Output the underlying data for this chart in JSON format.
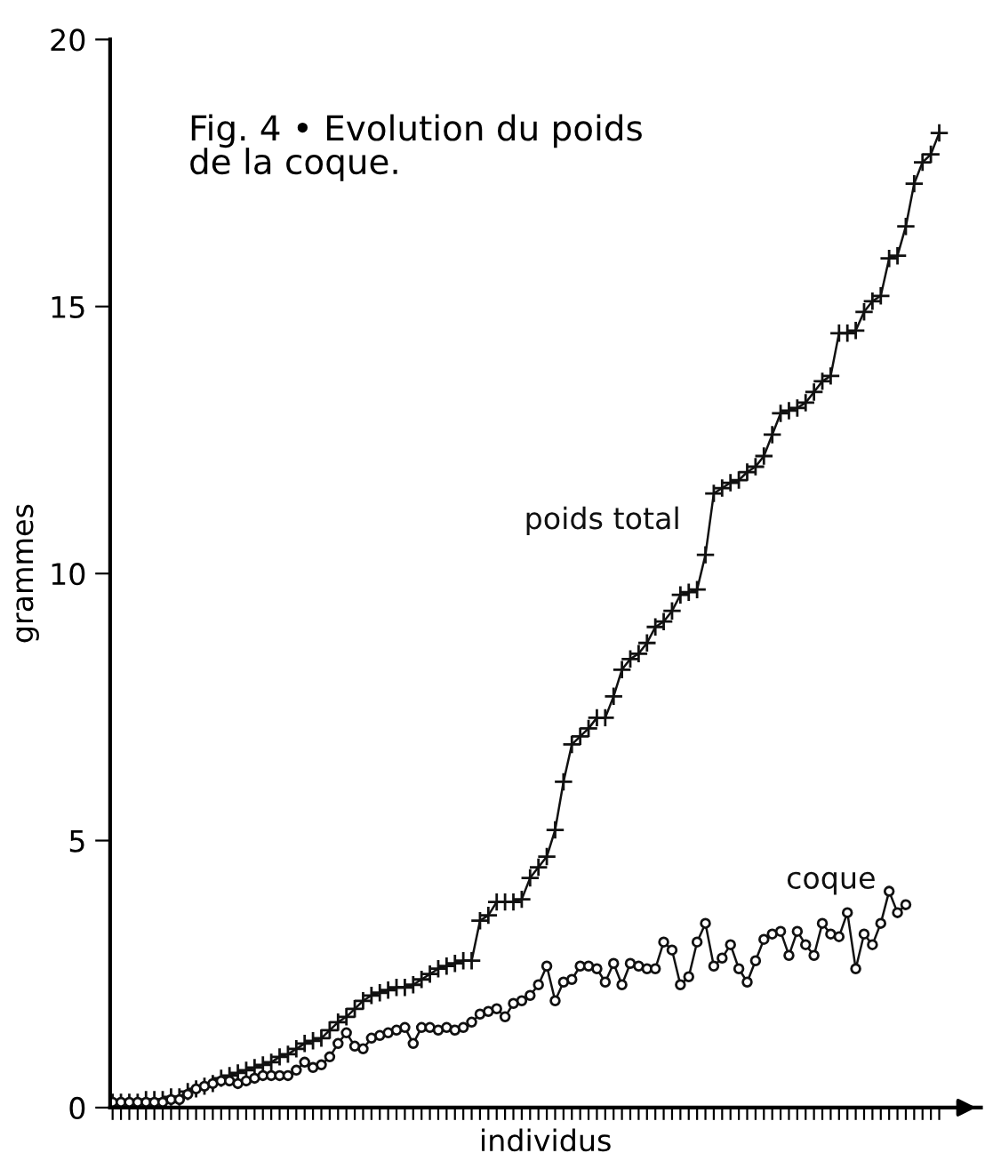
{
  "chart_data": {
    "type": "line",
    "title": "Fig. 4 • Evolution du poids de la coque.",
    "xlabel": "individus",
    "ylabel": "grammes",
    "categories": [
      null,
      null,
      null,
      null,
      null,
      null,
      null,
      null,
      null,
      null,
      null,
      null,
      null,
      null,
      null,
      null,
      null,
      null,
      null,
      null,
      null,
      null,
      null,
      null,
      null,
      null,
      null,
      null,
      null,
      null,
      null,
      null,
      null,
      null,
      null,
      null,
      null,
      null,
      null,
      null,
      null,
      null,
      null,
      null,
      null,
      null,
      null,
      null,
      null,
      null,
      null,
      null,
      null,
      null,
      null,
      null,
      null,
      null,
      null,
      null,
      null,
      null,
      null,
      null,
      null,
      null,
      null,
      null,
      null,
      null,
      null,
      null,
      null,
      null,
      null,
      null,
      null,
      null,
      null,
      null,
      null,
      null,
      null,
      null,
      null,
      null,
      null,
      null,
      null,
      null,
      null,
      null,
      null,
      null,
      null,
      null,
      null,
      null,
      null,
      null
    ],
    "series": [
      {
        "name": "poids total",
        "color": "#111111",
        "marker": "cross",
        "values": [
          0.1,
          0.1,
          0.1,
          0.1,
          0.15,
          0.15,
          0.15,
          0.2,
          0.2,
          0.3,
          0.35,
          0.4,
          0.45,
          0.55,
          0.6,
          0.65,
          0.7,
          0.75,
          0.8,
          0.85,
          0.95,
          1.0,
          1.1,
          1.2,
          1.25,
          1.3,
          1.45,
          1.6,
          1.7,
          1.85,
          2.0,
          2.1,
          2.15,
          2.2,
          2.25,
          2.25,
          2.3,
          2.4,
          2.5,
          2.6,
          2.65,
          2.7,
          2.75,
          2.75,
          3.5,
          3.6,
          3.85,
          3.85,
          3.85,
          3.9,
          4.3,
          4.5,
          4.7,
          5.2,
          6.1,
          6.8,
          6.95,
          7.1,
          7.3,
          7.3,
          7.7,
          8.2,
          8.4,
          8.5,
          8.7,
          9.0,
          9.1,
          9.3,
          9.6,
          9.65,
          9.7,
          10.35,
          11.5,
          11.6,
          11.7,
          11.75,
          11.9,
          12.0,
          12.2,
          12.6,
          13.0,
          13.05,
          13.1,
          13.2,
          13.4,
          13.6,
          13.7,
          14.5,
          14.5,
          14.55,
          14.9,
          15.1,
          15.2,
          15.9,
          15.95,
          16.5,
          17.3,
          17.7,
          17.85,
          18.25
        ]
      },
      {
        "name": "coque",
        "color": "#111111",
        "marker": "circle",
        "values": [
          0.1,
          0.1,
          0.1,
          0.1,
          0.1,
          0.1,
          0.1,
          0.15,
          0.15,
          0.25,
          0.35,
          0.4,
          0.45,
          0.5,
          0.5,
          0.45,
          0.5,
          0.55,
          0.6,
          0.6,
          0.6,
          0.6,
          0.7,
          0.85,
          0.75,
          0.8,
          0.95,
          1.2,
          1.4,
          1.15,
          1.1,
          1.3,
          1.35,
          1.4,
          1.45,
          1.5,
          1.2,
          1.5,
          1.5,
          1.45,
          1.5,
          1.45,
          1.5,
          1.6,
          1.75,
          1.8,
          1.85,
          1.7,
          1.95,
          2.0,
          2.1,
          2.3,
          2.65,
          2.0,
          2.35,
          2.4,
          2.65,
          2.65,
          2.6,
          2.35,
          2.7,
          2.3,
          2.7,
          2.65,
          2.6,
          2.6,
          3.1,
          2.95,
          2.3,
          2.45,
          3.1,
          3.45,
          2.65,
          2.8,
          3.05,
          2.6,
          2.35,
          2.75,
          3.15,
          3.25,
          3.3,
          2.85,
          3.3,
          3.05,
          2.85,
          3.45,
          3.25,
          3.2,
          3.65,
          2.6,
          3.25,
          3.05,
          3.45,
          4.05,
          3.65,
          3.8,
          null,
          null,
          null,
          null
        ]
      }
    ],
    "ylim": [
      0,
      20
    ],
    "yticks": [
      0,
      5,
      10,
      15,
      20
    ],
    "grid": false,
    "legend": false,
    "line_style": "solid"
  }
}
